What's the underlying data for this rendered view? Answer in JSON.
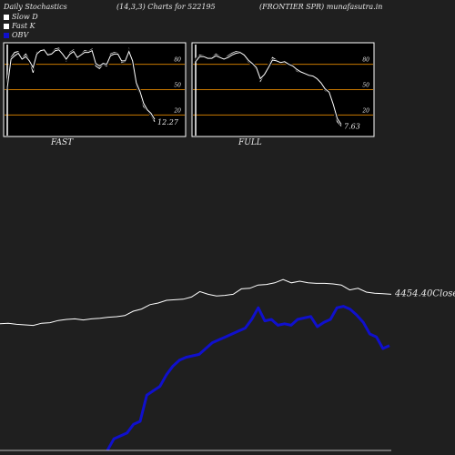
{
  "header": {
    "left": "Daily Stochastics",
    "center": "(14,3,3) Charts for 522195",
    "right": "(FRONTIER SPR) munafasutra.in"
  },
  "legend": [
    {
      "label": "Slow  D",
      "color": "#ffffff"
    },
    {
      "label": "Fast K",
      "color": "#ffffff"
    },
    {
      "label": "OBV",
      "color": "#1010cc"
    }
  ],
  "colors": {
    "background": "#1f1f1f",
    "panel": "#000000",
    "level": "#c87800",
    "line": "#ffffff",
    "obv": "#1010cc"
  },
  "chart_data": [
    {
      "type": "line",
      "name": "FAST",
      "ylim": [
        0,
        100
      ],
      "levels": [
        80,
        50,
        20
      ],
      "level_labels": [
        "80",
        "50",
        "20"
      ],
      "last_label": "12.27",
      "series": [
        {
          "values": [
            50,
            88,
            94,
            95,
            87,
            92,
            85,
            70,
            94,
            96,
            98,
            92,
            93,
            98,
            99,
            93,
            84,
            94,
            97,
            86,
            92,
            96,
            95,
            98,
            78,
            75,
            80,
            78,
            92,
            94,
            93,
            82,
            83,
            98,
            82,
            55,
            45,
            30,
            25,
            20,
            12
          ]
        },
        {
          "values": [
            52,
            86,
            90,
            93,
            86,
            89,
            84,
            76,
            92,
            96,
            97,
            91,
            92,
            96,
            97,
            92,
            86,
            92,
            95,
            88,
            91,
            94,
            94,
            96,
            81,
            78,
            81,
            80,
            90,
            92,
            92,
            84,
            84,
            95,
            84,
            58,
            48,
            34,
            26,
            22,
            15
          ]
        }
      ]
    },
    {
      "type": "line",
      "name": "FULL",
      "ylim": [
        0,
        100
      ],
      "levels": [
        80,
        50,
        20
      ],
      "level_labels": [
        "80",
        "50",
        "20"
      ],
      "last_label": "7.63",
      "series": [
        {
          "values": [
            85,
            91,
            90,
            88,
            88,
            92,
            89,
            86,
            90,
            93,
            95,
            95,
            90,
            83,
            80,
            74,
            60,
            68,
            78,
            88,
            85,
            82,
            84,
            80,
            78,
            72,
            70,
            68,
            66,
            66,
            62,
            57,
            49,
            46,
            30,
            12,
            7
          ]
        },
        {
          "values": [
            83,
            89,
            89,
            87,
            87,
            90,
            88,
            86,
            88,
            91,
            93,
            94,
            91,
            85,
            81,
            76,
            63,
            68,
            76,
            85,
            84,
            82,
            83,
            80,
            78,
            74,
            71,
            69,
            67,
            66,
            63,
            58,
            51,
            47,
            33,
            16,
            9
          ]
        }
      ]
    },
    {
      "type": "line",
      "name": "OBV / Close",
      "close_label": "4454.40Close",
      "series": [
        {
          "name": "Close",
          "values": [
            62,
            63,
            61,
            60,
            59,
            63,
            64,
            68,
            70,
            71,
            69,
            71,
            72,
            74,
            75,
            77,
            85,
            89,
            97,
            100,
            105,
            106,
            107,
            111,
            121,
            116,
            113,
            114,
            116,
            126,
            127,
            133,
            134,
            137,
            143,
            137,
            140,
            137,
            136,
            136,
            135,
            133,
            124,
            127,
            120,
            118,
            117,
            116
          ]
        },
        {
          "name": "OBV",
          "values": [
            0,
            8,
            10,
            12,
            18,
            20,
            38,
            41,
            44,
            52,
            58,
            62,
            64,
            65,
            66,
            70,
            74,
            76,
            78,
            80,
            82,
            84,
            90,
            98,
            89,
            90,
            86,
            87,
            86,
            90,
            91,
            92,
            85,
            88,
            90,
            98,
            99,
            97,
            93,
            88,
            80,
            78,
            70,
            72
          ]
        }
      ]
    }
  ]
}
